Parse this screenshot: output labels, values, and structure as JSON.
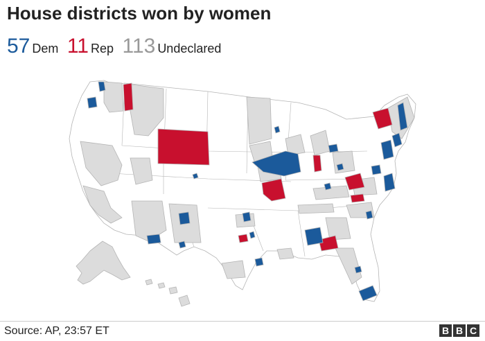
{
  "header": {
    "title": "House districts won by women"
  },
  "legend": [
    {
      "count": "57",
      "label": "Dem",
      "color": "#1b5a9b"
    },
    {
      "count": "11",
      "label": "Rep",
      "color": "#c8102e"
    },
    {
      "count": "113",
      "label": "Undeclared",
      "color": "#999999"
    }
  ],
  "map": {
    "fills": {
      "dem": "#1b5a9b",
      "rep": "#c8102e",
      "undeclared": "#dcdcdc",
      "none": "#ffffff",
      "border": "#b4b4b4"
    }
  },
  "footer": {
    "source": "Source: AP, 23:57 ET",
    "logo_letters": [
      "B",
      "B",
      "C"
    ]
  }
}
